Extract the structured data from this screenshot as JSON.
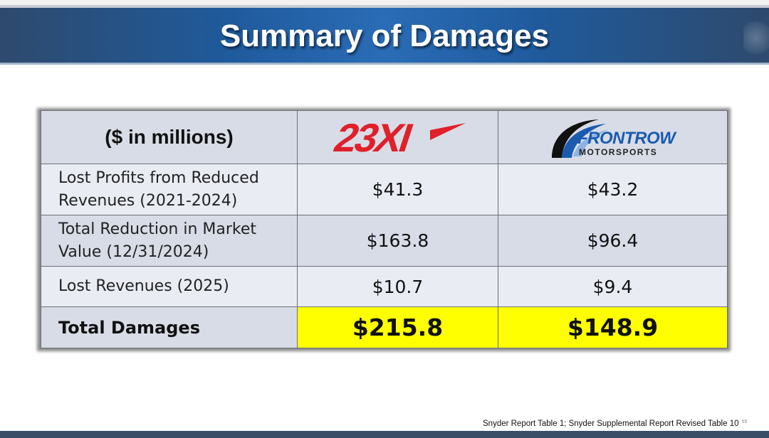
{
  "slide": {
    "title": "Summary of Damages",
    "footer_source": "Snyder Report Table 1; Snyder Supplemental Report Revised Table 10",
    "page_number": "55"
  },
  "table": {
    "unit_header": "($ in millions)",
    "columns": [
      {
        "logo_text": "23XI",
        "logo_icon": "23xi-logo",
        "logo_color": "#e0202a"
      },
      {
        "logo_text": "FRONTROW",
        "logo_subtext": "MOTORSPORTS",
        "logo_icon": "front-row-motorsports-logo",
        "logo_color": "#1a5bb0"
      }
    ],
    "rows": [
      {
        "label_line1": "Lost Profits from Reduced",
        "label_line2": "Revenues (2021-2024)",
        "values": [
          "$41.3",
          "$43.2"
        ]
      },
      {
        "label_line1": "Total Reduction in Market",
        "label_line2": "Value (12/31/2024)",
        "values": [
          "$163.8",
          "$96.4"
        ]
      },
      {
        "label_line1": "Lost Revenues (2025)",
        "label_line2": "",
        "values": [
          "$10.7",
          "$9.4"
        ]
      }
    ],
    "total": {
      "label": "Total Damages",
      "values": [
        "$215.8",
        "$148.9"
      ],
      "highlight_color": "#ffff00"
    }
  }
}
